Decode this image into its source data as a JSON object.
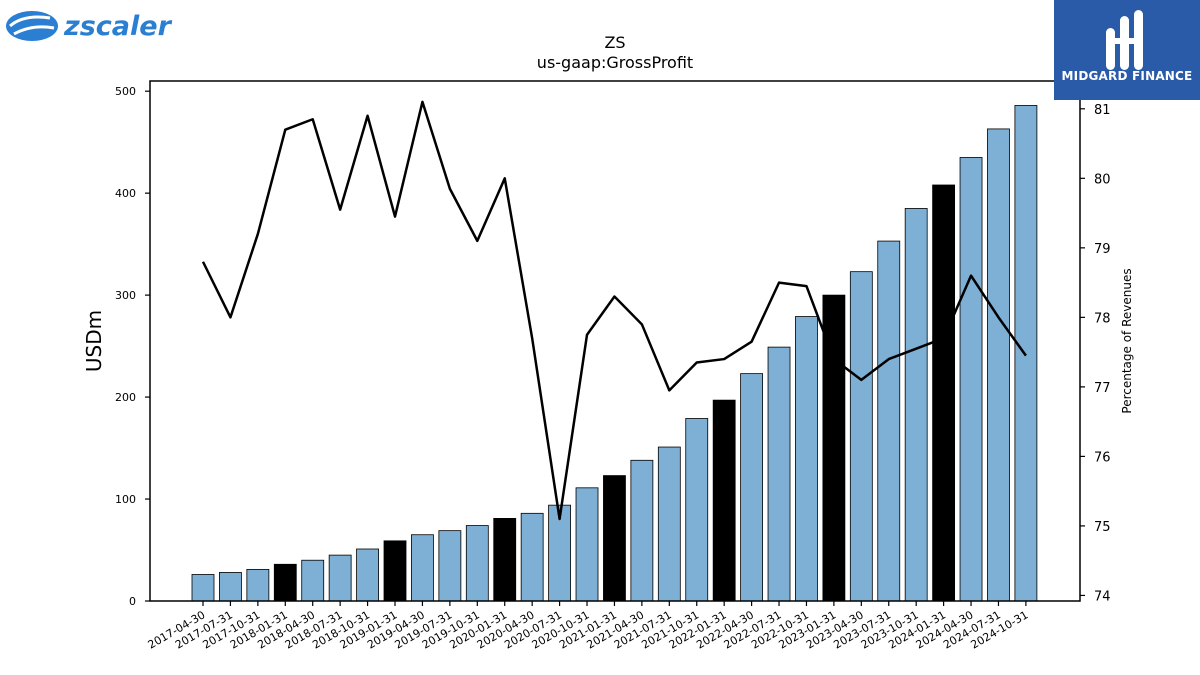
{
  "branding": {
    "company_logo_text": "zscaler",
    "publisher_logo_text": "MIDGARD FINANCE"
  },
  "chart_data": {
    "type": "bar",
    "title": "ZS",
    "subtitle": "us-gaap:GrossProfit",
    "ylabel": "USDm",
    "y2label": "Percentage of Revenues",
    "ylim": [
      0,
      510
    ],
    "y2lim": [
      73.92,
      81.4
    ],
    "yticks": [
      0,
      100,
      200,
      300,
      400,
      500
    ],
    "y2ticks": [
      74,
      75,
      76,
      77,
      78,
      79,
      80,
      81
    ],
    "categories": [
      "2017-04-30",
      "2017-07-31",
      "2017-10-31",
      "2018-01-31",
      "2018-04-30",
      "2018-07-31",
      "2018-10-31",
      "2019-01-31",
      "2019-04-30",
      "2019-07-31",
      "2019-10-31",
      "2020-01-31",
      "2020-04-30",
      "2020-07-31",
      "2020-10-31",
      "2021-01-31",
      "2021-04-30",
      "2021-07-31",
      "2021-10-31",
      "2022-01-31",
      "2022-04-30",
      "2022-07-31",
      "2022-10-31",
      "2023-01-31",
      "2023-04-30",
      "2023-07-31",
      "2023-10-31",
      "2024-01-31",
      "2024-04-30",
      "2024-07-31",
      "2024-10-31"
    ],
    "series": [
      {
        "kind": "bar",
        "axis": "left",
        "values": [
          26,
          28,
          31,
          36,
          40,
          45,
          51,
          59,
          65,
          69,
          74,
          81,
          86,
          94,
          111,
          123,
          138,
          151,
          179,
          197,
          223,
          249,
          279,
          300,
          323,
          353,
          385,
          408,
          435,
          463,
          486
        ],
        "highlight_indices": [
          3,
          7,
          11,
          15,
          19,
          23,
          27
        ],
        "color": "#7eb0d5",
        "highlight_color": "#000000"
      },
      {
        "kind": "line",
        "axis": "right",
        "values": [
          78.8,
          78.0,
          79.2,
          80.7,
          80.85,
          79.55,
          80.9,
          79.45,
          81.1,
          79.85,
          79.1,
          80.0,
          77.7,
          75.1,
          77.75,
          78.3,
          77.9,
          76.95,
          77.35,
          77.4,
          77.65,
          78.5,
          78.45,
          77.4,
          77.1,
          77.4,
          77.55,
          77.7,
          78.6,
          78.0,
          77.45
        ],
        "color": "#000000"
      }
    ],
    "grid": false,
    "legend": "none"
  }
}
